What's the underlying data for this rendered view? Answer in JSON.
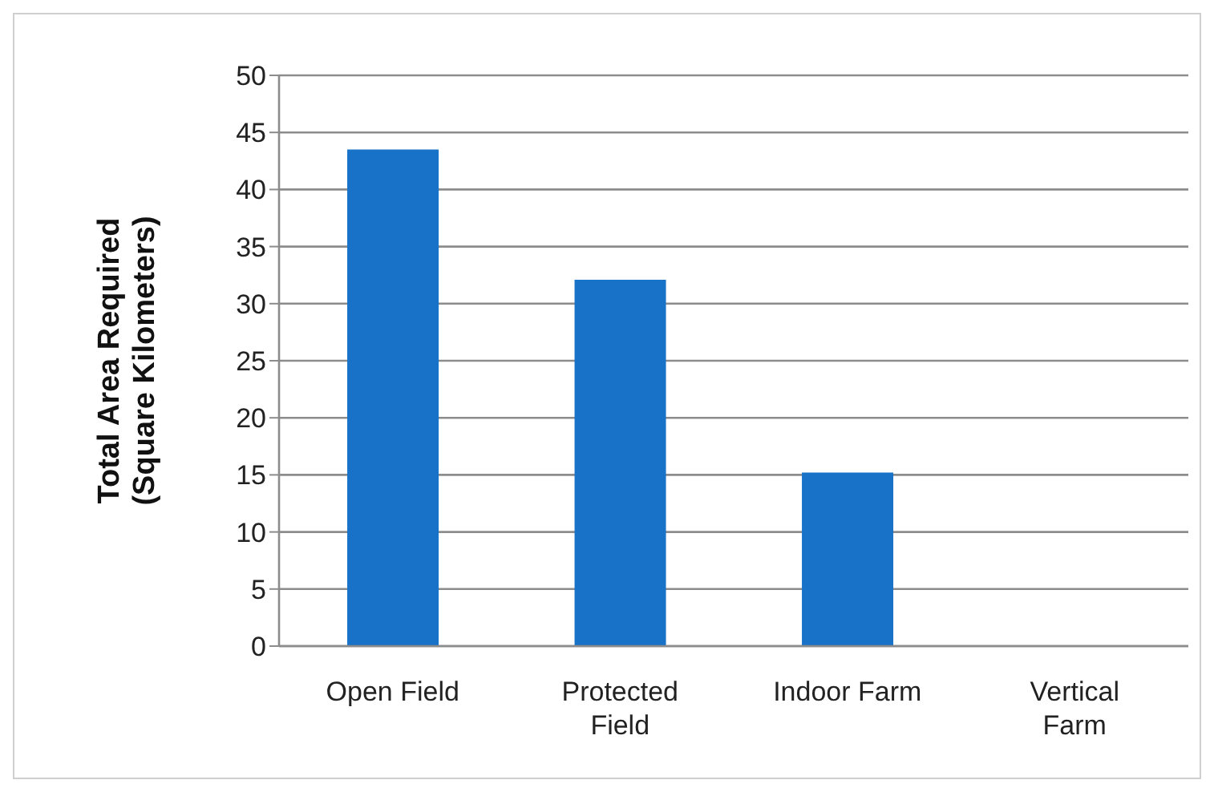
{
  "chart_data": {
    "type": "bar",
    "ylabel": "Total Area Required\n(Square Kilometers)",
    "categories": [
      "Open Field",
      "Protected Field",
      "Indoor Farm",
      "Vertical Farm"
    ],
    "values": [
      43.5,
      32.1,
      15.2,
      0
    ],
    "color": "#1872c8",
    "ylim": [
      0,
      50
    ],
    "yticks": [
      0,
      5,
      10,
      15,
      20,
      25,
      30,
      35,
      40,
      45,
      50
    ],
    "grid": "y",
    "legend": false
  }
}
